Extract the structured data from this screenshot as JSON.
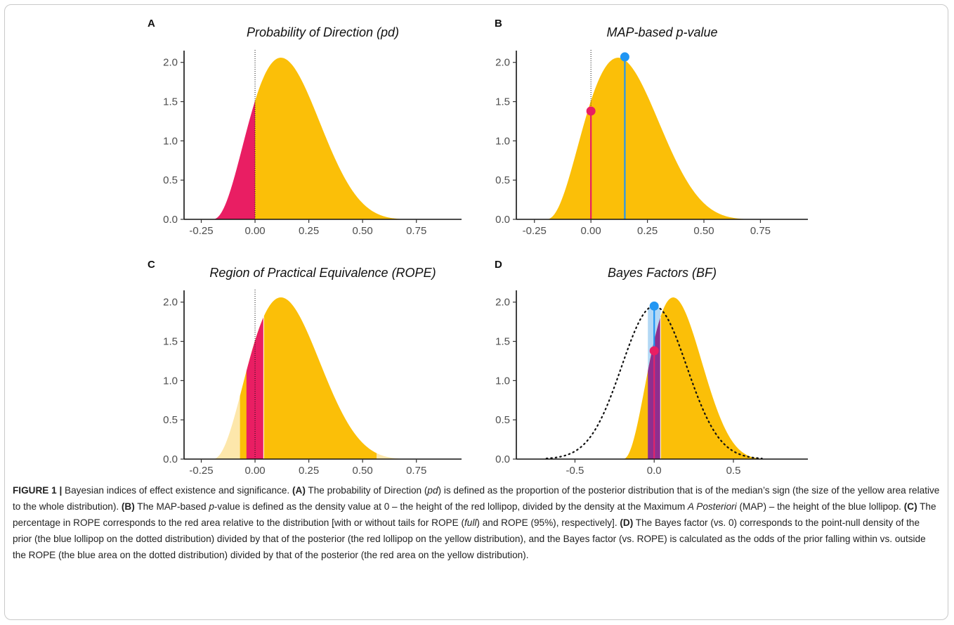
{
  "figure": {
    "caption": {
      "label": "FIGURE 1 |",
      "intro": " Bayesian indices of effect existence and significance. ",
      "a_label": "(A)",
      "a_text1": " The probability of Direction (",
      "a_italic": "pd",
      "a_text2": ") is defined as the proportion of the posterior distribution that is of the median’s sign (the size of the yellow area relative to the whole distribution). ",
      "b_label": "(B)",
      "b_text1": " The MAP-based ",
      "b_italic1": "p",
      "b_text2": "-value is defined as the density value at 0 – the height of the red lollipop, divided by the density at the Maximum ",
      "b_italic2": "A Posteriori",
      "b_text3": " (MAP) – the height of the blue lollipop. ",
      "c_label": "(C)",
      "c_text1": " The percentage in ROPE corresponds to the red area relative to the distribution [with or without tails for ROPE (",
      "c_italic": "full",
      "c_text2": ") and ROPE (95%), respectively]. ",
      "d_label": "(D)",
      "d_text": " The Bayes factor (vs. 0) corresponds to the point-null density of the prior (the blue lollipop on the dotted distribution) divided by that of the posterior (the red lollipop on the yellow distribution), and the Bayes factor (vs. ROPE) is calculated as the odds of the prior falling within vs. outside the ROPE (the blue area on the dotted distribution) divided by that of the posterior (the red area on the yellow distribution)."
    }
  },
  "colors": {
    "posterior": "#FBBF08",
    "posterior_light": "#FDE7AB",
    "red": "#E91E63",
    "blue": "#2196F3",
    "blue_light": "#B3D8F5",
    "overlap": "#8E2F8F",
    "axis": "#111111"
  },
  "chart_data": [
    {
      "panel": "A",
      "title": "Probability of Direction (pd)",
      "type": "area",
      "xlabel": "",
      "ylabel": "",
      "xlim": [
        -0.33,
        0.96
      ],
      "ylim": [
        0,
        2.15
      ],
      "xticks": [
        "-0.25",
        "0.00",
        "0.25",
        "0.50",
        "0.75"
      ],
      "xtick_values": [
        -0.25,
        0,
        0.25,
        0.5,
        0.75
      ],
      "yticks": [
        "0.0",
        "0.5",
        "1.0",
        "1.5",
        "2.0"
      ],
      "ytick_values": [
        0,
        0.5,
        1,
        1.5,
        2
      ],
      "posterior": {
        "x": [
          -0.2,
          0.825
        ],
        "mode": 0.15,
        "peak": 2.06,
        "value_at_0": 1.38
      },
      "red_region": [
        -0.2,
        0
      ],
      "reference_line_x": 0
    },
    {
      "panel": "B",
      "title": "MAP-based p-value",
      "type": "area",
      "xlabel": "",
      "ylabel": "",
      "xlim": [
        -0.33,
        0.96
      ],
      "ylim": [
        0,
        2.15
      ],
      "xticks": [
        "-0.25",
        "0.00",
        "0.25",
        "0.50",
        "0.75"
      ],
      "xtick_values": [
        -0.25,
        0,
        0.25,
        0.5,
        0.75
      ],
      "yticks": [
        "0.0",
        "0.5",
        "1.0",
        "1.5",
        "2.0"
      ],
      "ytick_values": [
        0,
        0.5,
        1,
        1.5,
        2
      ],
      "posterior": {
        "x": [
          -0.2,
          0.825
        ],
        "mode": 0.15,
        "peak": 2.06,
        "value_at_0": 1.38
      },
      "lollipops": [
        {
          "name": "density at 0",
          "x": 0,
          "y": 1.38,
          "color": "red"
        },
        {
          "name": "density at MAP",
          "x": 0.15,
          "y": 2.07,
          "color": "blue"
        }
      ],
      "reference_line_x": 0
    },
    {
      "panel": "C",
      "title": "Region of Practical Equivalence (ROPE)",
      "type": "area",
      "xlabel": "",
      "ylabel": "",
      "xlim": [
        -0.33,
        0.96
      ],
      "ylim": [
        0,
        2.15
      ],
      "xticks": [
        "-0.25",
        "0.00",
        "0.25",
        "0.50",
        "0.75"
      ],
      "xtick_values": [
        -0.25,
        0,
        0.25,
        0.5,
        0.75
      ],
      "yticks": [
        "0.0",
        "0.5",
        "1.0",
        "1.5",
        "2.0"
      ],
      "ytick_values": [
        0,
        0.5,
        1,
        1.5,
        2
      ],
      "posterior": {
        "x": [
          -0.2,
          0.825
        ],
        "mode": 0.15,
        "peak": 2.06,
        "value_at_0": 1.38
      },
      "ci95": [
        -0.07,
        0.565
      ],
      "rope": [
        -0.04,
        0.04
      ],
      "reference_line_x": 0
    },
    {
      "panel": "D",
      "title": "Bayes Factors (BF)",
      "type": "area",
      "xlabel": "",
      "ylabel": "",
      "xlim": [
        -0.87,
        0.97
      ],
      "ylim": [
        0,
        2.15
      ],
      "xticks": [
        "-0.5",
        "0.0",
        "0.5"
      ],
      "xtick_values": [
        -0.5,
        0,
        0.5
      ],
      "yticks": [
        "0.0",
        "0.5",
        "1.0",
        "1.5",
        "2.0"
      ],
      "ytick_values": [
        0,
        0.5,
        1,
        1.5,
        2
      ],
      "posterior": {
        "x": [
          -0.2,
          0.825
        ],
        "mode": 0.15,
        "peak": 2.06,
        "value_at_0": 1.38
      },
      "prior": {
        "mean": 0,
        "sd": 0.205,
        "peak": 1.95,
        "style": "dotted"
      },
      "rope": [
        -0.04,
        0.04
      ],
      "lollipops": [
        {
          "name": "prior density at 0",
          "x": 0,
          "y": 1.95,
          "color": "blue"
        },
        {
          "name": "posterior density at 0",
          "x": 0,
          "y": 1.38,
          "color": "red"
        }
      ]
    }
  ]
}
